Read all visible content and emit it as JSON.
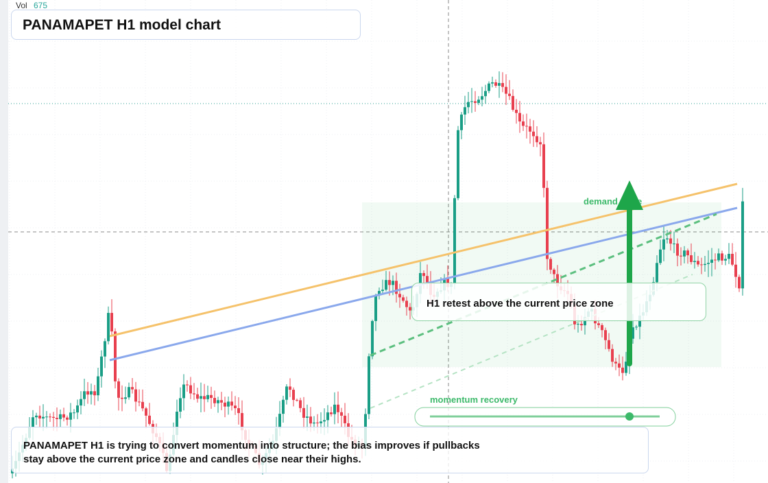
{
  "header": {
    "volume_label": "Vol",
    "volume_value": 675,
    "title": "PANAMAPET H1 model chart"
  },
  "annotations": {
    "zone_label": "demand trade",
    "callout": "H1 retest above the current price zone",
    "momentum_label": "momentum recovery"
  },
  "note": {
    "line1": "PANAMAPET H1 is trying to convert momentum into structure; the bias improves if pullbacks",
    "line2": "stay above the current price zone and candles close near their highs."
  }
}
